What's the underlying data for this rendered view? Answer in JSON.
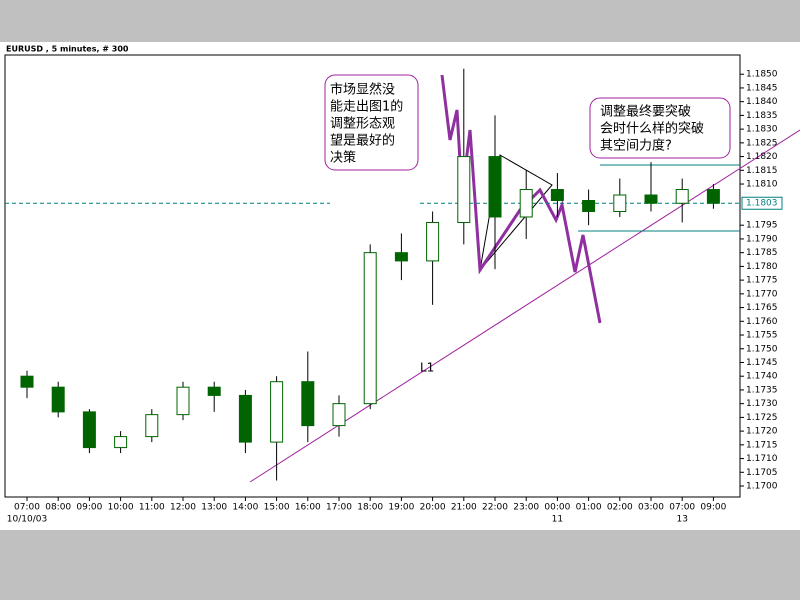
{
  "chart_data": {
    "type": "candlestick",
    "title": "EURUSD , 5 minutes, # 300",
    "categories": [
      "07:00",
      "08:00",
      "09:00",
      "10:00",
      "11:00",
      "12:00",
      "13:00",
      "14:00",
      "15:00",
      "16:00",
      "17:00",
      "18:00",
      "19:00",
      "20:00",
      "21:00",
      "22:00",
      "23:00",
      "00:00",
      "01:00",
      "02:00",
      "03:00",
      "07:00",
      "09:00"
    ],
    "date_labels": [
      "10/10/03",
      null,
      null,
      null,
      null,
      null,
      null,
      null,
      null,
      null,
      null,
      null,
      null,
      null,
      null,
      null,
      null,
      "11",
      null,
      null,
      null,
      "13",
      null
    ],
    "series": [
      {
        "name": "open",
        "values": [
          1.174,
          1.1736,
          1.1727,
          1.1714,
          1.1718,
          1.1726,
          1.1736,
          1.1733,
          1.1716,
          1.1738,
          1.1722,
          1.173,
          1.1785,
          1.1782,
          1.1796,
          1.182,
          1.1798,
          1.1808,
          1.1804,
          1.18,
          1.1806,
          1.1803,
          1.1808
        ]
      },
      {
        "name": "high",
        "values": [
          1.1742,
          1.1738,
          1.1728,
          1.172,
          1.1728,
          1.1738,
          1.1738,
          1.1735,
          1.174,
          1.1749,
          1.1733,
          1.1788,
          1.1792,
          1.18,
          1.1852,
          1.1835,
          1.1815,
          1.1814,
          1.1808,
          1.1812,
          1.1818,
          1.1812,
          1.181
        ]
      },
      {
        "name": "low",
        "values": [
          1.1732,
          1.1725,
          1.1712,
          1.1712,
          1.1716,
          1.1724,
          1.1727,
          1.1712,
          1.1702,
          1.1716,
          1.1718,
          1.1728,
          1.1775,
          1.1766,
          1.1788,
          1.1779,
          1.179,
          1.1798,
          1.1795,
          1.1798,
          1.18,
          1.1796,
          1.1801
        ]
      },
      {
        "name": "close",
        "values": [
          1.1736,
          1.1727,
          1.1714,
          1.1718,
          1.1726,
          1.1736,
          1.1733,
          1.1716,
          1.1738,
          1.1722,
          1.173,
          1.1785,
          1.1782,
          1.1796,
          1.182,
          1.1798,
          1.1808,
          1.1804,
          1.18,
          1.1806,
          1.1803,
          1.1808,
          1.1803
        ]
      }
    ],
    "color": "#006400",
    "ylim": [
      1.1696,
      1.1857
    ],
    "yticks": [
      {
        "value": 1.17,
        "label": "1.1700"
      },
      {
        "value": 1.1705,
        "label": "1.1705"
      },
      {
        "value": 1.171,
        "label": "1.1710"
      },
      {
        "value": 1.1715,
        "label": "1.1715"
      },
      {
        "value": 1.172,
        "label": "1.1720"
      },
      {
        "value": 1.1725,
        "label": "1.1725"
      },
      {
        "value": 1.173,
        "label": "1.1730"
      },
      {
        "value": 1.1735,
        "label": "1.1735"
      },
      {
        "value": 1.174,
        "label": "1.1740"
      },
      {
        "value": 1.1745,
        "label": "1.1745"
      },
      {
        "value": 1.175,
        "label": "1.1750"
      },
      {
        "value": 1.1755,
        "label": "1.1755"
      },
      {
        "value": 1.176,
        "label": "1.1760"
      },
      {
        "value": 1.1765,
        "label": "1.1765"
      },
      {
        "value": 1.177,
        "label": "1.1770"
      },
      {
        "value": 1.1775,
        "label": "1.1775"
      },
      {
        "value": 1.178,
        "label": "1.1780"
      },
      {
        "value": 1.1785,
        "label": "1.1785"
      },
      {
        "value": 1.179,
        "label": "1.1790"
      },
      {
        "value": 1.1795,
        "label": "1.1795"
      },
      {
        "value": 1.181,
        "label": "1.1810"
      },
      {
        "value": 1.1815,
        "label": "1.1815"
      },
      {
        "value": 1.182,
        "label": "1.1820"
      },
      {
        "value": 1.1825,
        "label": "1.1825"
      },
      {
        "value": 1.183,
        "label": "1.1830"
      },
      {
        "value": 1.1835,
        "label": "1.1835"
      },
      {
        "value": 1.184,
        "label": "1.1840"
      },
      {
        "value": 1.1845,
        "label": "1.1845"
      },
      {
        "value": 1.185,
        "label": "1.1850"
      }
    ],
    "current_price": {
      "value": 1.1803,
      "label": "1.1803"
    },
    "trendline_label": "L1",
    "annotations": [
      [
        "市场显然没",
        "能走出图1的",
        "调整形态观",
        "望是最好的",
        "决策"
      ],
      [
        "调整最终要突破",
        "会时什么样的突破",
        "其空间力度?"
      ]
    ]
  }
}
